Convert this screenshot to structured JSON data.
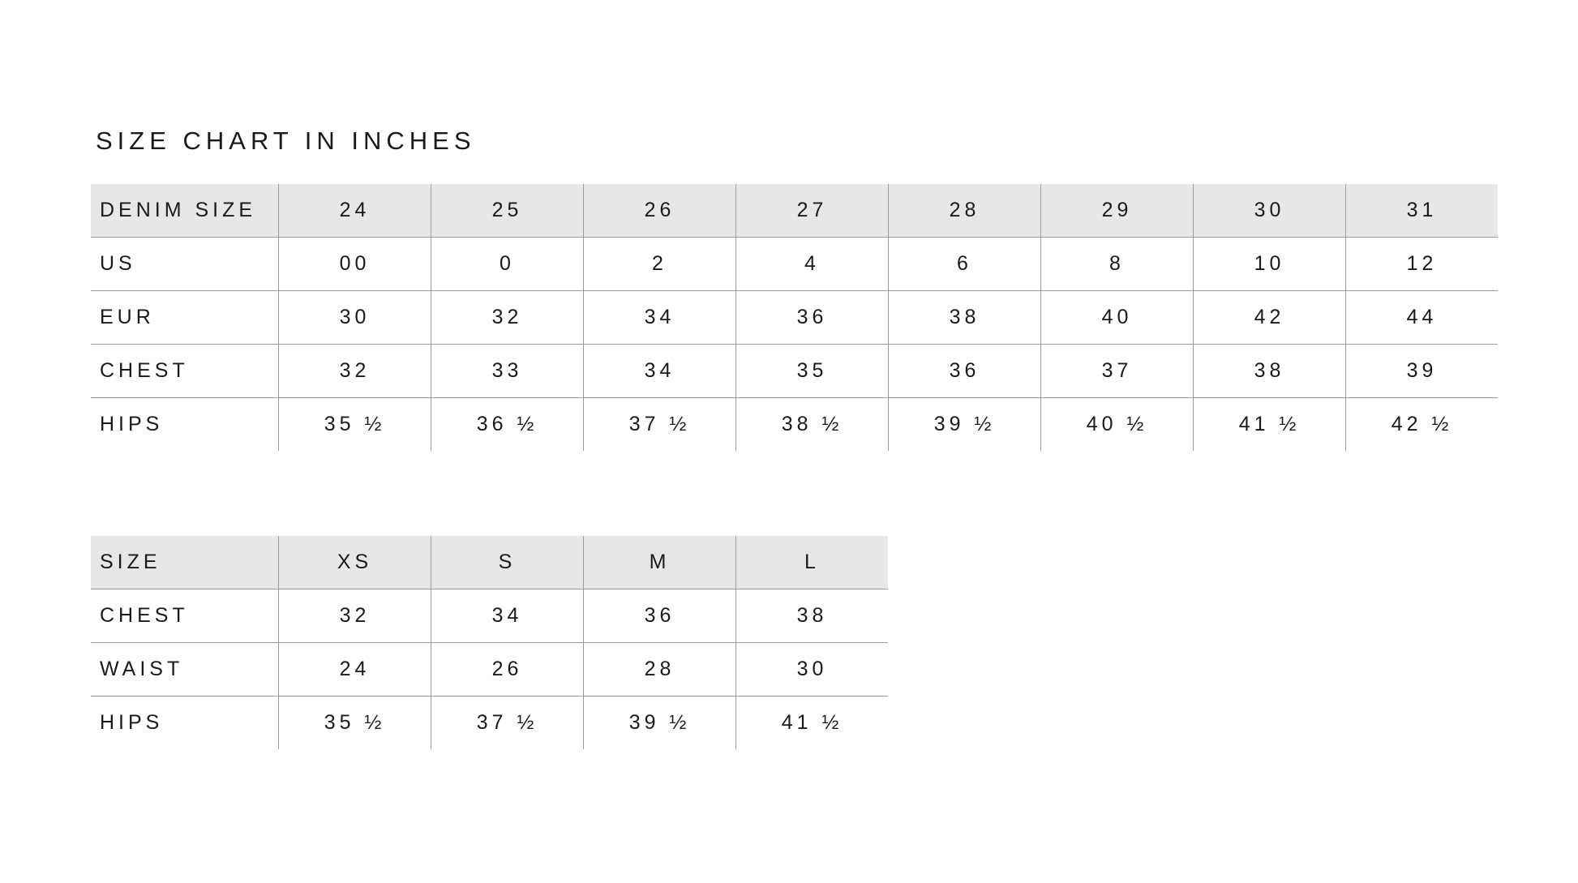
{
  "title": "SIZE CHART IN INCHES",
  "denim_table": {
    "header": [
      "DENIM SIZE",
      "24",
      "25",
      "26",
      "27",
      "28",
      "29",
      "30",
      "31"
    ],
    "rows": [
      [
        "US",
        "00",
        "0",
        "2",
        "4",
        "6",
        "8",
        "10",
        "12"
      ],
      [
        "EUR",
        "30",
        "32",
        "34",
        "36",
        "38",
        "40",
        "42",
        "44"
      ],
      [
        "CHEST",
        "32",
        "33",
        "34",
        "35",
        "36",
        "37",
        "38",
        "39"
      ],
      [
        "HIPS",
        "35 ½",
        "36 ½",
        "37 ½",
        "38 ½",
        "39 ½",
        "40 ½",
        "41 ½",
        "42 ½"
      ]
    ]
  },
  "size_table": {
    "header": [
      "SIZE",
      "XS",
      "S",
      "M",
      "L"
    ],
    "rows": [
      [
        "CHEST",
        "32",
        "34",
        "36",
        "38"
      ],
      [
        "WAIST",
        "24",
        "26",
        "28",
        "30"
      ],
      [
        "HIPS",
        "35 ½",
        "37 ½",
        "39 ½",
        "41 ½"
      ]
    ]
  },
  "colors": {
    "header_bg": "#e6e7e8",
    "rule": "#9a9a9a",
    "text": "#1a1a1a"
  }
}
